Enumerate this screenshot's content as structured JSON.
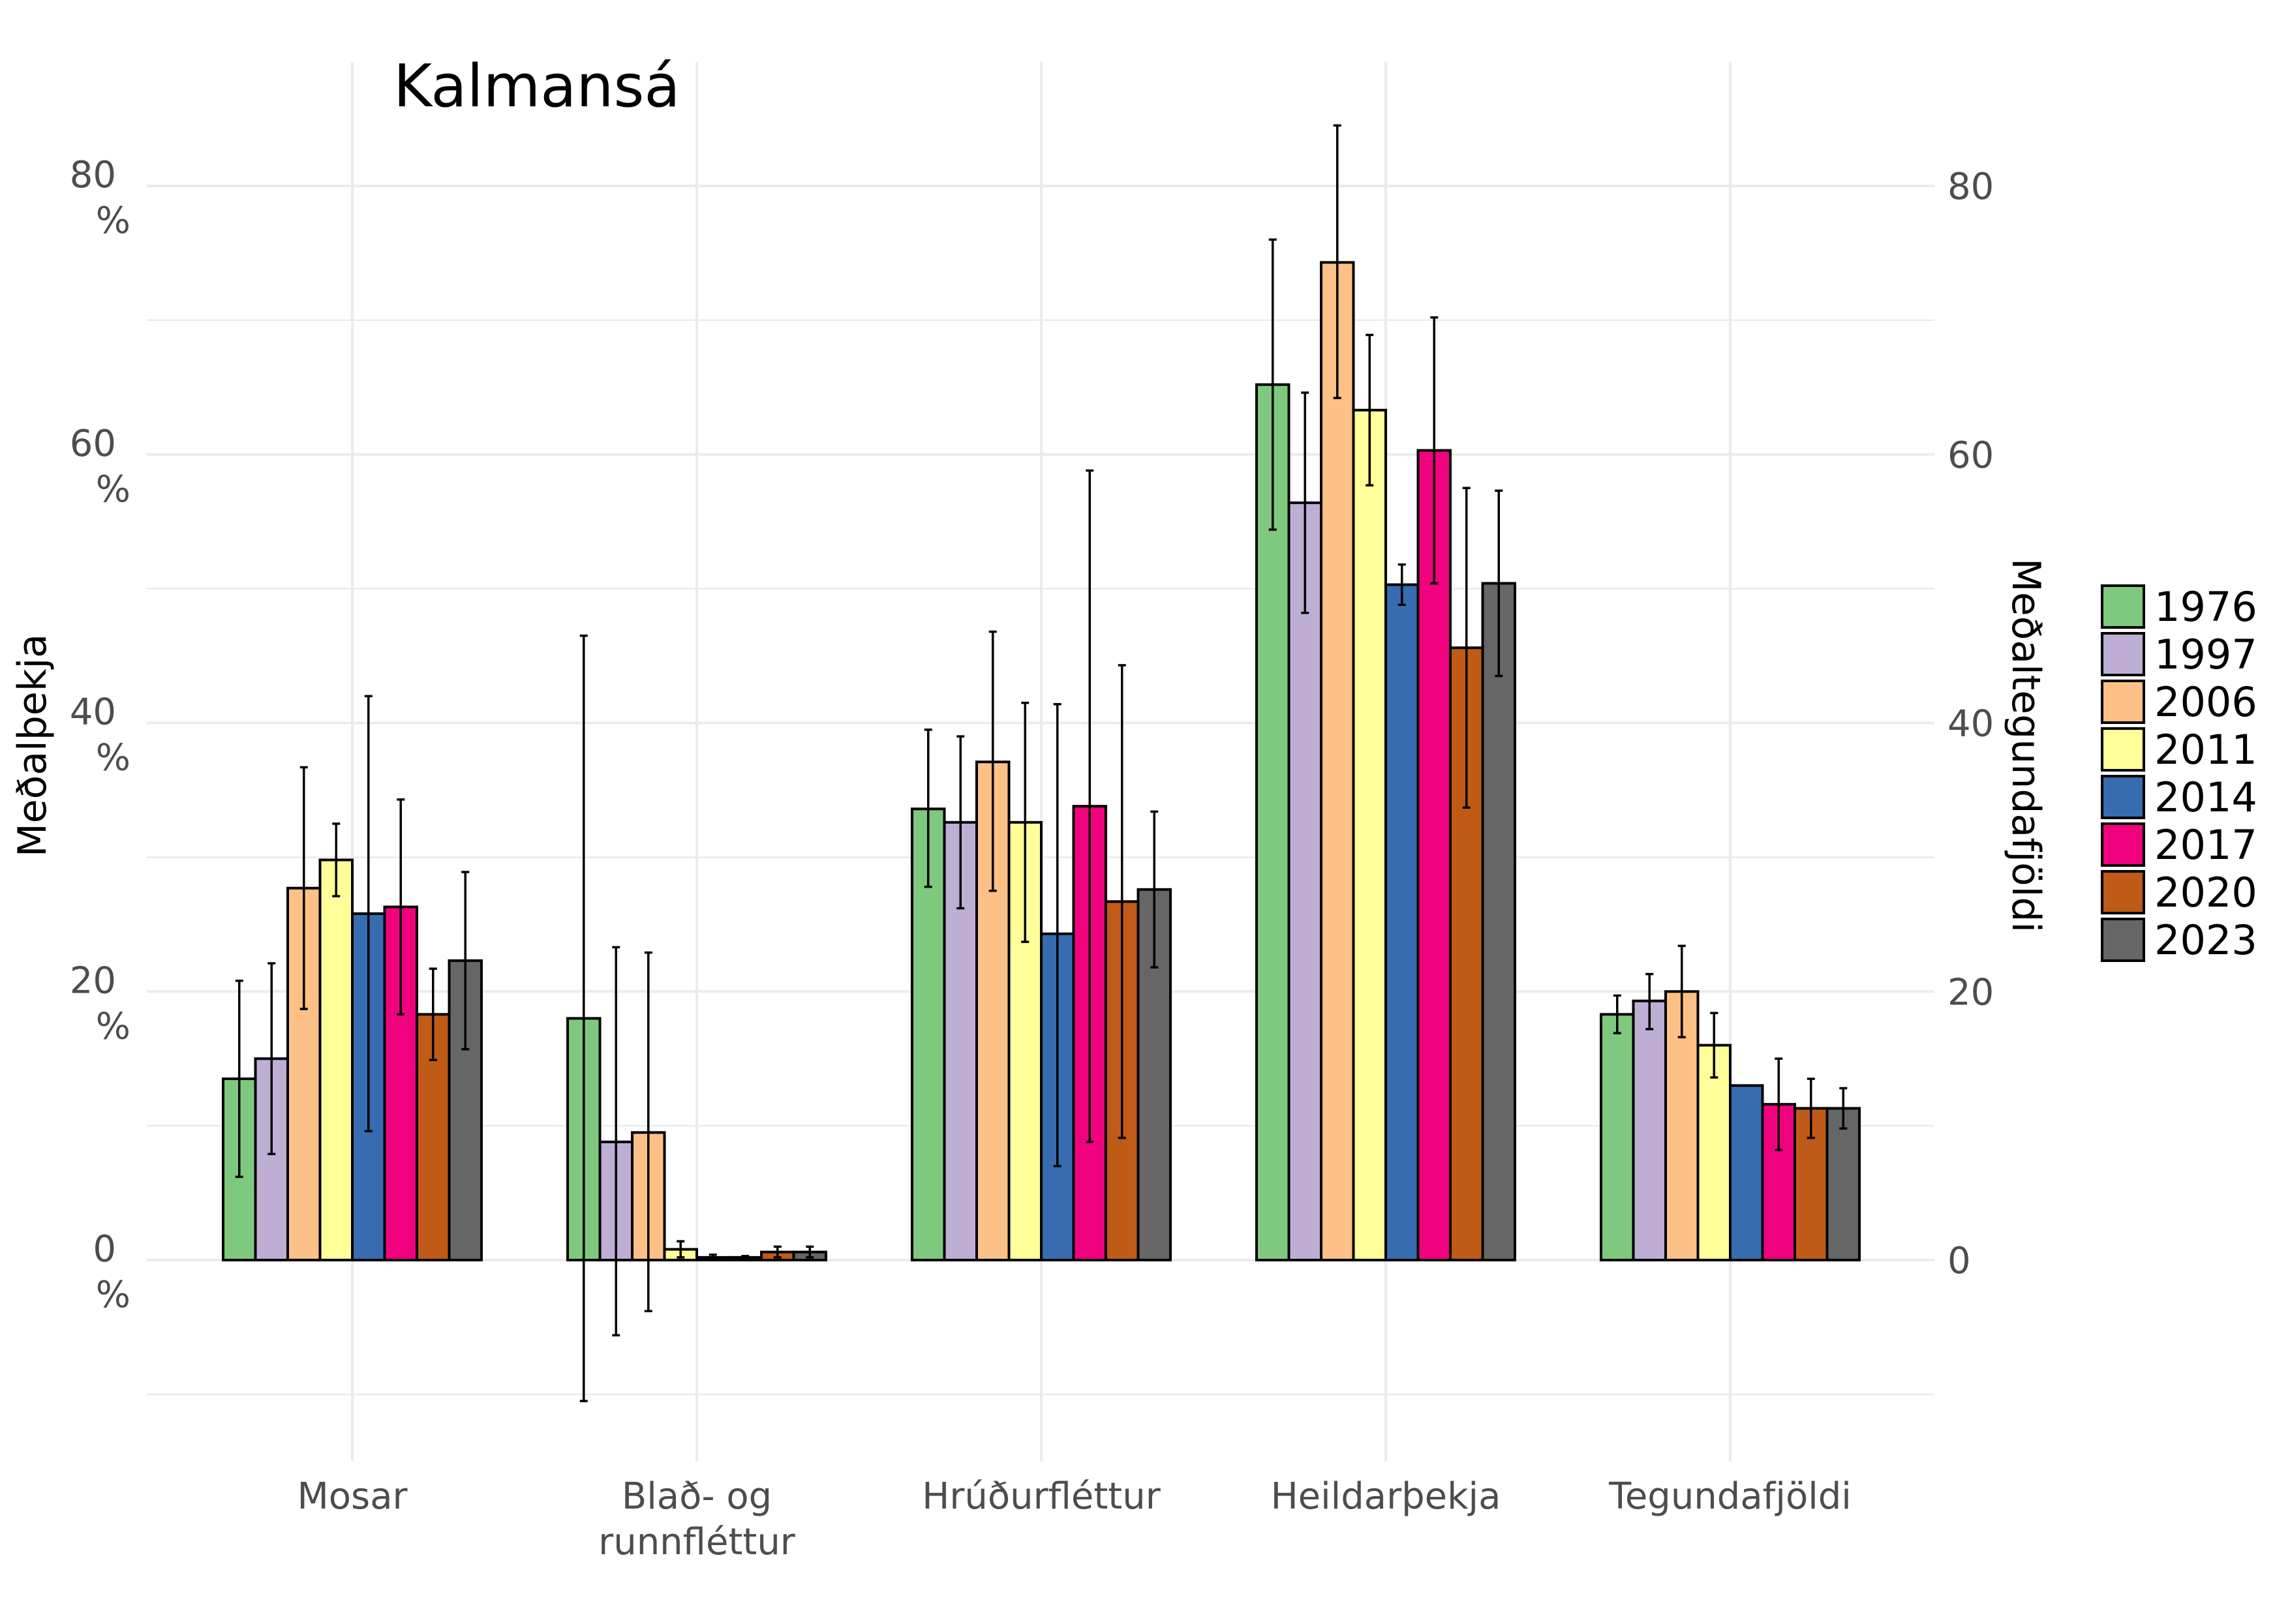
{
  "chart_data": {
    "type": "bar",
    "title": "Kalmansá",
    "ylabel_left": "Meðalþekja",
    "ylabel_right": "Meðaltegundafjöldi",
    "ylim": [
      -11,
      93
    ],
    "left_ticks": [
      {
        "value": 0,
        "label": "0\n%"
      },
      {
        "value": 20,
        "label": "20\n%"
      },
      {
        "value": 40,
        "label": "40\n%"
      },
      {
        "value": 60,
        "label": "60\n%"
      },
      {
        "value": 80,
        "label": "80\n%"
      }
    ],
    "right_ticks": [
      {
        "value": 0,
        "label": "0"
      },
      {
        "value": 20,
        "label": "20"
      },
      {
        "value": 40,
        "label": "40"
      },
      {
        "value": 60,
        "label": "60"
      },
      {
        "value": 80,
        "label": "80"
      }
    ],
    "categories": [
      "Mosar",
      "Blað- og\nrunnfléttur",
      "Hrúðurfléttur",
      "Heildarþekja",
      "Tegundafjöldi"
    ],
    "grid": true,
    "legend_position": "right",
    "series": [
      {
        "name": "1976",
        "color": "#7FC97F",
        "values": [
          13.5,
          18,
          33.6,
          65.2,
          18.3
        ],
        "err_low": [
          6.2,
          -10.5,
          27.8,
          54.4,
          16.9
        ],
        "err_high": [
          20.8,
          46.5,
          39.5,
          76.0,
          19.7
        ]
      },
      {
        "name": "1997",
        "color": "#BEAED4",
        "values": [
          15,
          8.8,
          32.6,
          56.4,
          19.3
        ],
        "err_low": [
          7.9,
          -5.6,
          26.2,
          48.2,
          17.2
        ],
        "err_high": [
          22.1,
          23.3,
          39.0,
          64.6,
          21.3
        ]
      },
      {
        "name": "2006",
        "color": "#FDC086",
        "values": [
          27.7,
          9.5,
          37.1,
          74.3,
          20
        ],
        "err_low": [
          18.7,
          -3.8,
          27.5,
          64.2,
          16.6
        ],
        "err_high": [
          36.7,
          22.9,
          46.8,
          84.5,
          23.4
        ]
      },
      {
        "name": "2011",
        "color": "#FFFF99",
        "values": [
          29.8,
          0.8,
          32.6,
          63.3,
          16
        ],
        "err_low": [
          27.1,
          0.2,
          23.7,
          57.7,
          13.6
        ],
        "err_high": [
          32.5,
          1.4,
          41.5,
          68.9,
          18.4
        ]
      },
      {
        "name": "2014",
        "color": "#386CB0",
        "values": [
          25.8,
          0.2,
          24.3,
          50.3,
          13
        ],
        "err_low": [
          9.6,
          0.0,
          7.0,
          48.8,
          13.0
        ],
        "err_high": [
          42.0,
          0.4,
          41.4,
          51.8,
          13.0
        ]
      },
      {
        "name": "2017",
        "color": "#F0027F",
        "values": [
          26.3,
          0.2,
          33.8,
          60.3,
          11.6
        ],
        "err_low": [
          18.3,
          0.1,
          8.8,
          50.4,
          8.2
        ],
        "err_high": [
          34.3,
          0.3,
          58.8,
          70.2,
          15.0
        ]
      },
      {
        "name": "2020",
        "color": "#BF5B17",
        "values": [
          18.3,
          0.6,
          26.7,
          45.6,
          11.3
        ],
        "err_low": [
          14.9,
          0.2,
          9.1,
          33.7,
          9.1
        ],
        "err_high": [
          21.7,
          1.0,
          44.3,
          57.5,
          13.5
        ]
      },
      {
        "name": "2023",
        "color": "#666666",
        "values": [
          22.3,
          0.6,
          27.6,
          50.4,
          11.3
        ],
        "err_low": [
          15.7,
          0.2,
          21.8,
          43.5,
          9.8
        ],
        "err_high": [
          28.9,
          1.0,
          33.4,
          57.3,
          12.8
        ]
      }
    ]
  }
}
